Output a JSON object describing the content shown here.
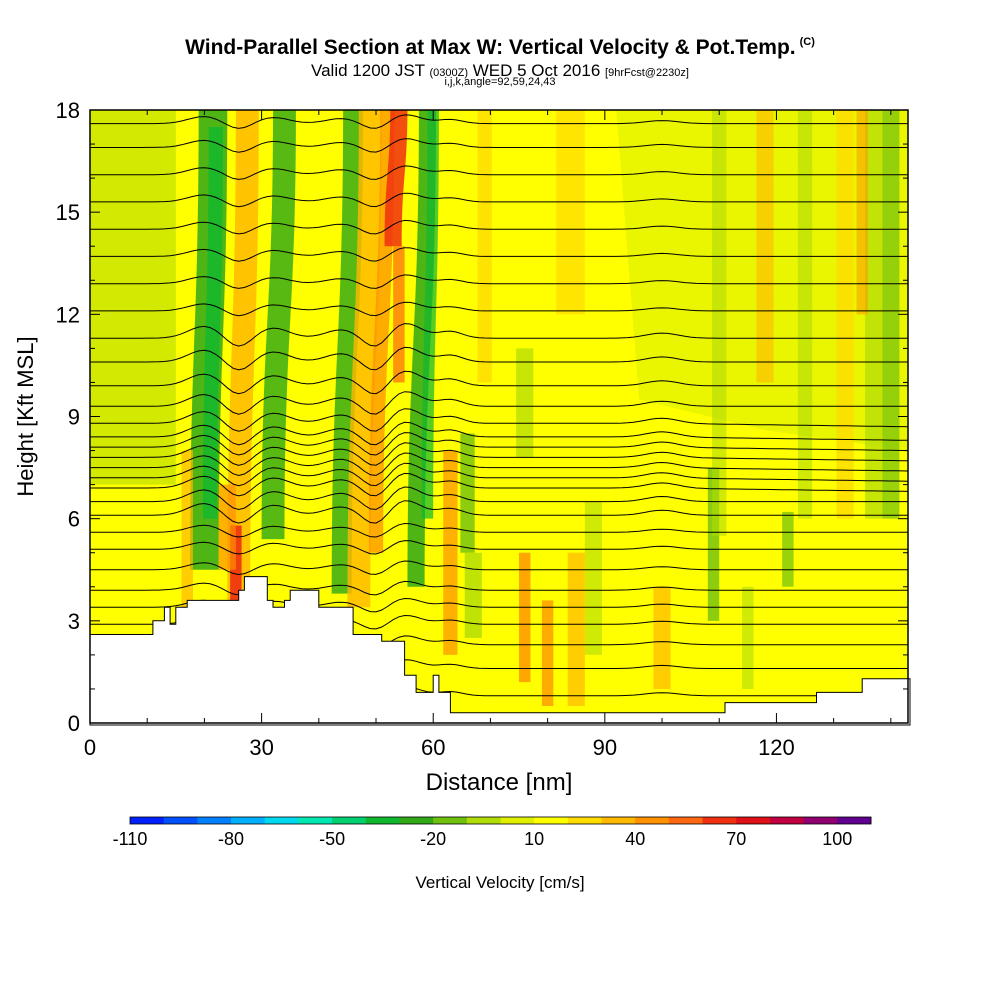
{
  "header": {
    "title": "Wind-Parallel Section at Max W: Vertical Velocity & Pot.Temp.",
    "copyright": "(C)",
    "valid_prefix": "Valid 1200 JST",
    "valid_z": "(0300Z)",
    "valid_date": "WED 5 Oct 2016",
    "fcst": "[9hrFcst@2230z]",
    "params": "i,j,k,angle=92,59,24,43"
  },
  "colorbar": {
    "label": "Vertical Velocity [cm/s]",
    "tick_labels": [
      "-110",
      "-80",
      "-50",
      "-20",
      "10",
      "40",
      "70",
      "100"
    ],
    "colors": [
      "#0020ff",
      "#0050ff",
      "#0080ff",
      "#00b0ff",
      "#00d8f0",
      "#00e8b0",
      "#00d070",
      "#10b830",
      "#30a818",
      "#70c010",
      "#b0dc08",
      "#e0f000",
      "#ffff00",
      "#ffdc00",
      "#ffb800",
      "#ff9000",
      "#ff6810",
      "#f03010",
      "#e01018",
      "#c00040",
      "#900070",
      "#600090"
    ]
  },
  "chart_data": {
    "type": "heatmap",
    "title": "Wind-Parallel Section at Max W: Vertical Velocity & Pot.Temp.",
    "xlabel": "Distance [nm]",
    "ylabel": "Height [Kft MSL]",
    "xlim": [
      0,
      143
    ],
    "ylim": [
      0,
      18
    ],
    "xticks": [
      "0",
      "30",
      "60",
      "90",
      "120"
    ],
    "yticks": [
      "0",
      "3",
      "6",
      "9",
      "12",
      "15",
      "18"
    ],
    "colorbar_range": [
      -110,
      110
    ],
    "updrafts_x_nm": [
      26,
      48,
      53,
      63,
      76,
      80,
      85,
      100,
      110,
      118,
      132
    ],
    "downdrafts_x_nm": [
      20,
      32,
      44,
      57,
      67,
      109,
      125,
      140
    ],
    "terrain_kft": [
      [
        0,
        2.6
      ],
      [
        11,
        2.6
      ],
      [
        11,
        3.0
      ],
      [
        13,
        3.0
      ],
      [
        13,
        3.4
      ],
      [
        14,
        3.4
      ],
      [
        14,
        2.9
      ],
      [
        15,
        2.9
      ],
      [
        15,
        3.4
      ],
      [
        17,
        3.4
      ],
      [
        17,
        3.6
      ],
      [
        26,
        3.6
      ],
      [
        26,
        3.9
      ],
      [
        27,
        3.9
      ],
      [
        27,
        4.3
      ],
      [
        31,
        4.3
      ],
      [
        31,
        3.6
      ],
      [
        32,
        3.6
      ],
      [
        32,
        3.4
      ],
      [
        34,
        3.4
      ],
      [
        34,
        3.6
      ],
      [
        35,
        3.6
      ],
      [
        35,
        3.9
      ],
      [
        40,
        3.9
      ],
      [
        40,
        3.4
      ],
      [
        46,
        3.4
      ],
      [
        46,
        2.6
      ],
      [
        51,
        2.6
      ],
      [
        51,
        2.4
      ],
      [
        55,
        2.4
      ],
      [
        55,
        1.4
      ],
      [
        57,
        1.4
      ],
      [
        57,
        0.9
      ],
      [
        60,
        0.9
      ],
      [
        60,
        1.4
      ],
      [
        61,
        1.4
      ],
      [
        61,
        0.9
      ],
      [
        63,
        0.9
      ],
      [
        63,
        0.3
      ],
      [
        111,
        0.3
      ],
      [
        111,
        0.6
      ],
      [
        127,
        0.6
      ],
      [
        127,
        0.9
      ],
      [
        135,
        0.9
      ],
      [
        135,
        1.3
      ],
      [
        143,
        1.3
      ]
    ],
    "theta_isentropes_kft": [
      0.8,
      1.6,
      2.3,
      2.9,
      3.4,
      3.9,
      4.5,
      5.1,
      5.6,
      6.1,
      6.5,
      6.9,
      7.2,
      7.5,
      7.8,
      8.1,
      8.4,
      8.8,
      9.3,
      9.9,
      10.6,
      11.3,
      12.1,
      12.9,
      13.7,
      14.5,
      15.3,
      16.1,
      16.9,
      17.6
    ]
  }
}
